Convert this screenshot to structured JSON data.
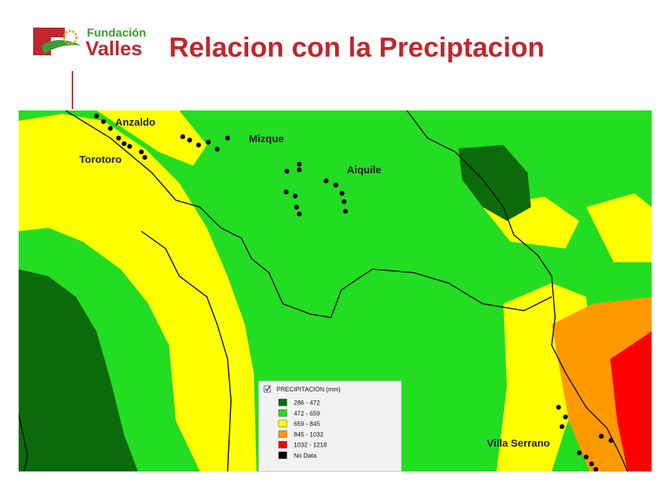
{
  "header": {
    "logo_top": "Fundación",
    "logo_bottom": "Valles",
    "title": "Relacion con la Preciptacion"
  },
  "map": {
    "labels": [
      "Anzaldo",
      "Torotoro",
      "Mizque",
      "Aiquile",
      "Villa Serrano"
    ]
  },
  "legend": {
    "title": "PRECIPITACION (mm)",
    "items": [
      {
        "label": "286 - 472",
        "color": "#0b6b0b"
      },
      {
        "label": "472 - 659",
        "color": "#22dd22"
      },
      {
        "label": "659 - 845",
        "color": "#ffff00"
      },
      {
        "label": "845 - 1032",
        "color": "#ff9900"
      },
      {
        "label": "1032 - 1218",
        "color": "#ff0000"
      },
      {
        "label": "No Data",
        "color": "#000000"
      }
    ]
  }
}
